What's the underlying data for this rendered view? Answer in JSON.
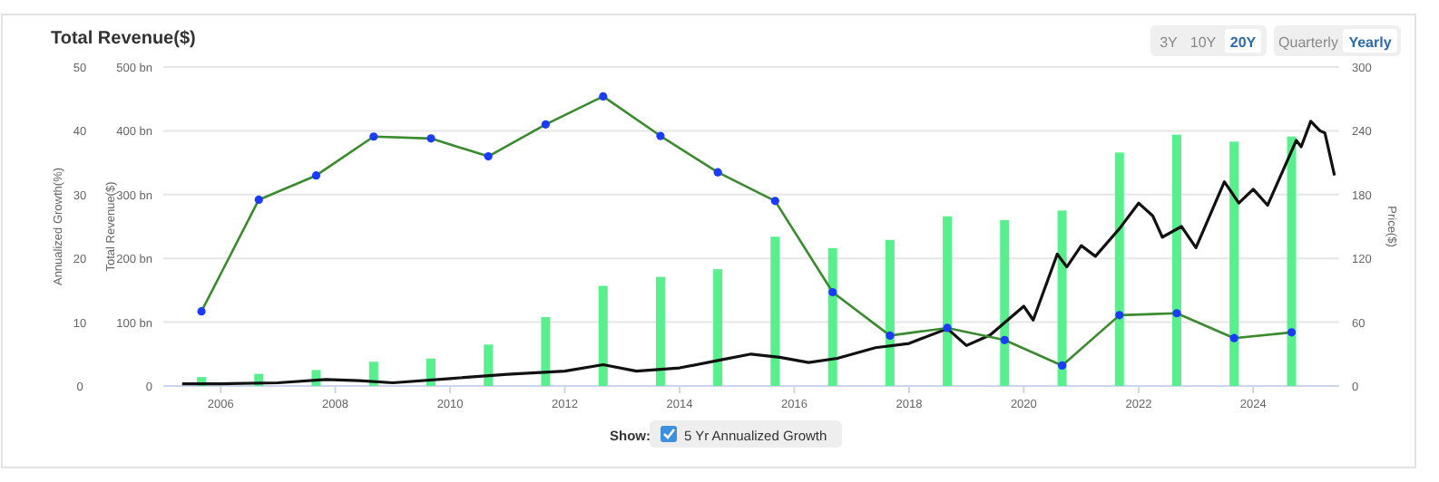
{
  "chart_data": {
    "type": "bar",
    "title": "Total Revenue($)",
    "ylabel": "Total Revenue($)",
    "y2label": "Price($)",
    "y3label": "Annualized Growth(%)",
    "annotations": [
      "3Y",
      "10Y",
      "20Y",
      "Quarterly",
      "Yearly",
      "Show:"
    ],
    "xlim": [
      "2005-01",
      "2025-07"
    ],
    "xticks": [
      {
        "value": "2006-01",
        "label": "2006"
      },
      {
        "value": "2008-01",
        "label": "2008"
      },
      {
        "value": "2010-01",
        "label": "2010"
      },
      {
        "value": "2012-01",
        "label": "2012"
      },
      {
        "value": "2014-01",
        "label": "2014"
      },
      {
        "value": "2016-01",
        "label": "2016"
      },
      {
        "value": "2018-01",
        "label": "2018"
      },
      {
        "value": "2020-01",
        "label": "2020"
      },
      {
        "value": "2022-01",
        "label": "2022"
      },
      {
        "value": "2024-01",
        "label": "2024"
      }
    ],
    "ylim": [
      0,
      500
    ],
    "yticks": [
      0,
      {
        "value": 100,
        "label": "100 bn"
      },
      {
        "value": 200,
        "label": "200 bn"
      },
      {
        "value": 300,
        "label": "300 bn"
      },
      {
        "value": 400,
        "label": "400 bn"
      },
      {
        "value": 500,
        "label": "500 bn"
      }
    ],
    "y2lim": [
      0,
      300
    ],
    "y2ticks": [
      0,
      60,
      120,
      180,
      240,
      300
    ],
    "y3lim": [
      0,
      50
    ],
    "y3ticks": [
      0,
      10,
      20,
      30,
      40,
      50
    ],
    "grid": "y",
    "legend": "bottom",
    "series": [
      {
        "color": "#57f08d",
        "x": [
          "2005-09",
          "2006-09",
          "2007-09",
          "2008-09",
          "2009-09",
          "2010-09",
          "2011-09",
          "2012-09",
          "2013-09",
          "2014-09",
          "2015-09",
          "2016-09",
          "2017-09",
          "2018-09",
          "2019-09",
          "2020-09",
          "2021-09",
          "2022-09",
          "2023-09",
          "2024-09"
        ],
        "values": [
          14,
          19,
          25,
          38,
          43,
          65,
          108,
          157,
          171,
          183,
          234,
          216,
          229,
          266,
          260,
          275,
          366,
          394,
          383,
          391
        ]
      },
      {
        "type": "line",
        "color": "#111111",
        "axis": "y2",
        "marker": "none",
        "x": [
          "2005-05",
          "2006-01",
          "2007-01",
          "2007-11",
          "2008-06",
          "2009-01",
          "2010-01",
          "2011-01",
          "2012-01",
          "2012-09",
          "2013-04",
          "2014-01",
          "2014-09",
          "2015-04",
          "2015-10",
          "2016-04",
          "2016-10",
          "2017-06",
          "2018-01",
          "2018-09",
          "2019-01",
          "2019-06",
          "2020-01",
          "2020-03",
          "2020-08",
          "2020-10",
          "2021-01",
          "2021-04",
          "2021-09",
          "2022-01",
          "2022-04",
          "2022-06",
          "2022-10",
          "2023-01",
          "2023-07",
          "2023-10",
          "2024-01",
          "2024-04",
          "2024-10",
          "2024-11",
          "2025-01",
          "2025-03",
          "2025-04",
          "2025-06"
        ],
        "values": [
          2,
          2,
          3,
          6,
          5,
          3,
          7,
          11,
          14,
          20,
          14,
          17,
          24,
          30,
          27,
          22,
          26,
          36,
          40,
          54,
          38,
          48,
          75,
          62,
          124,
          112,
          132,
          122,
          148,
          172,
          160,
          140,
          150,
          130,
          192,
          172,
          185,
          170,
          231,
          225,
          249,
          240,
          238,
          198
        ]
      },
      {
        "type": "line",
        "name": "5 Yr Annualized Growth",
        "color": "#3a8a2e",
        "axis": "y3",
        "marker": "circle",
        "x": [
          "2005-09",
          "2006-09",
          "2007-09",
          "2008-09",
          "2009-09",
          "2010-09",
          "2011-09",
          "2012-09",
          "2013-09",
          "2014-09",
          "2015-09",
          "2016-09",
          "2017-09",
          "2018-09",
          "2019-09",
          "2020-09",
          "2021-09",
          "2022-09",
          "2023-09",
          "2024-09"
        ],
        "values": [
          11.7,
          29.2,
          33.0,
          39.1,
          38.8,
          36.0,
          41.0,
          45.4,
          39.2,
          33.5,
          29.0,
          14.7,
          7.9,
          9.1,
          7.2,
          3.2,
          11.1,
          11.4,
          7.5,
          8.4
        ]
      }
    ]
  }
}
